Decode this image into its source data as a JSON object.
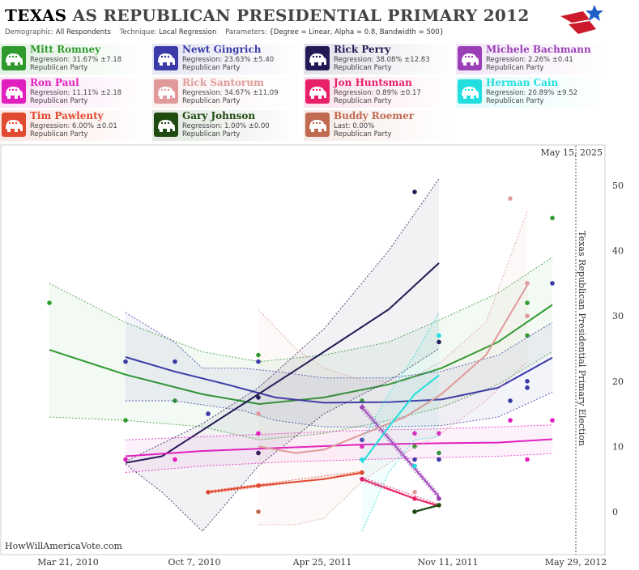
{
  "header": {
    "title_state": "TEXAS",
    "title_rest": "AS REPUBLICAN PRESIDENTIAL PRIMARY 2012",
    "demographic_label": "Demographic:",
    "demographic_value": "All Respondents",
    "technique_label": "Technique:",
    "technique_value": "Local Regression",
    "parameters_label": "Parameters:",
    "parameters_value": "{Degree = Linear, Alpha = 0.8, Bandwidth = 500}"
  },
  "candidates": [
    {
      "name": "Mitt Romney",
      "stat": "Regression: 31.67% ±7.18",
      "party": "Republican Party",
      "color": "#2e9a2e"
    },
    {
      "name": "Newt Gingrich",
      "stat": "Regression: 23.63% ±5.40",
      "party": "Republican Party",
      "color": "#3a3aa8"
    },
    {
      "name": "Rick Perry",
      "stat": "Regression: 38.08% ±12.83",
      "party": "Republican Party",
      "color": "#221a55"
    },
    {
      "name": "Michele Bachmann",
      "stat": "Regression: 2.26% ±0.41",
      "party": "Republican Party",
      "color": "#9b3fb8"
    },
    {
      "name": "Ron Paul",
      "stat": "Regression: 11.11% ±2.18",
      "party": "Republican Party",
      "color": "#e11fbf"
    },
    {
      "name": "Rick Santorum",
      "stat": "Regression: 34.67% ±11.09",
      "party": "Republican Party",
      "color": "#e09a9a"
    },
    {
      "name": "Jon Huntsman",
      "stat": "Regression: 0.89% ±0.17",
      "party": "Republican Party",
      "color": "#e8206a"
    },
    {
      "name": "Herman Cain",
      "stat": "Regression: 20.89% ±9.52",
      "party": "Republican Party",
      "color": "#22dede"
    },
    {
      "name": "Tim Pawlenty",
      "stat": "Regression: 6.00% ±0.01",
      "party": "Republican Party",
      "color": "#e04a30"
    },
    {
      "name": "Gary Johnson",
      "stat": "Regression: 1.00% ±0.00",
      "party": "Republican Party",
      "color": "#1f4a10"
    },
    {
      "name": "Buddy Roemer",
      "stat": "Last: 0.00%",
      "party": "Republican Party",
      "color": "#c06a50"
    }
  ],
  "chart_data": {
    "type": "line",
    "x_ticks": [
      "Mar 21, 2010",
      "Oct 7, 2010",
      "Apr 25, 2011",
      "Nov 11, 2011",
      "May 29, 2012"
    ],
    "y_ticks": [
      0,
      10,
      20,
      30,
      40,
      50
    ],
    "ylim": [
      -7,
      55
    ],
    "date_marker": "May 15, 2025",
    "election_label": "Texas Republican Presidential Primary Election",
    "watermark": "HowWillAmericaVote.com",
    "series": [
      {
        "name": "Mitt Romney",
        "color": "#2e9a2e",
        "line": [
          [
            61,
            24.8
          ],
          [
            155,
            21
          ],
          [
            250,
            18
          ],
          [
            320,
            16.5
          ],
          [
            400,
            17.5
          ],
          [
            480,
            19.5
          ],
          [
            545,
            22
          ],
          [
            615,
            26
          ],
          [
            682,
            31.7
          ]
        ],
        "upper": [
          [
            61,
            35
          ],
          [
            155,
            29
          ],
          [
            250,
            24.5
          ],
          [
            320,
            23
          ],
          [
            400,
            24
          ],
          [
            480,
            26
          ],
          [
            545,
            29.5
          ],
          [
            615,
            33.5
          ],
          [
            682,
            39
          ]
        ],
        "lower": [
          [
            61,
            14.5
          ],
          [
            155,
            14
          ],
          [
            250,
            13
          ],
          [
            320,
            11
          ],
          [
            400,
            12
          ],
          [
            480,
            14
          ],
          [
            545,
            16
          ],
          [
            615,
            19.5
          ],
          [
            682,
            24.5
          ]
        ],
        "points": [
          [
            61,
            32
          ],
          [
            155,
            14
          ],
          [
            216,
            17
          ],
          [
            319,
            24
          ],
          [
            447,
            17
          ],
          [
            512,
            10
          ],
          [
            542,
            9
          ],
          [
            651,
            27
          ],
          [
            651,
            32
          ],
          [
            682,
            45
          ]
        ]
      },
      {
        "name": "Newt Gingrich",
        "color": "#3a3aa8",
        "line": [
          [
            155,
            23.7
          ],
          [
            215,
            21.5
          ],
          [
            280,
            19.5
          ],
          [
            340,
            17.5
          ],
          [
            400,
            16.7
          ],
          [
            480,
            16.8
          ],
          [
            545,
            17.2
          ],
          [
            615,
            19
          ],
          [
            682,
            23.6
          ]
        ],
        "upper": [
          [
            155,
            30.5
          ],
          [
            215,
            26
          ],
          [
            250,
            22
          ],
          [
            300,
            22
          ],
          [
            340,
            21.5
          ],
          [
            400,
            20.5
          ],
          [
            480,
            20.5
          ],
          [
            545,
            21.5
          ],
          [
            615,
            24
          ],
          [
            682,
            29
          ]
        ],
        "lower": [
          [
            155,
            17
          ],
          [
            215,
            17
          ],
          [
            300,
            15.5
          ],
          [
            340,
            14
          ],
          [
            400,
            13
          ],
          [
            480,
            13
          ],
          [
            545,
            13.2
          ],
          [
            615,
            14.5
          ],
          [
            682,
            18.3
          ]
        ],
        "points": [
          [
            155,
            23
          ],
          [
            216,
            23
          ],
          [
            257,
            15
          ],
          [
            319,
            23
          ],
          [
            447,
            11
          ],
          [
            512,
            8
          ],
          [
            542,
            8
          ],
          [
            630,
            17
          ],
          [
            651,
            20
          ],
          [
            651,
            19
          ],
          [
            682,
            35
          ]
        ]
      },
      {
        "name": "Rick Perry",
        "color": "#221a55",
        "line": [
          [
            155,
            7.5
          ],
          [
            200,
            8.5
          ],
          [
            250,
            12.5
          ],
          [
            319,
            18
          ],
          [
            400,
            24.5
          ],
          [
            480,
            31
          ],
          [
            542,
            38.1
          ]
        ],
        "upper": [
          [
            155,
            7.7
          ],
          [
            250,
            13.5
          ],
          [
            319,
            19
          ],
          [
            400,
            28
          ],
          [
            480,
            40
          ],
          [
            542,
            51
          ]
        ],
        "lower": [
          [
            155,
            7.3
          ],
          [
            200,
            3
          ],
          [
            250,
            -3
          ],
          [
            319,
            7
          ],
          [
            400,
            15
          ],
          [
            480,
            20
          ],
          [
            542,
            25
          ]
        ],
        "points": [
          [
            319,
            17.5
          ],
          [
            319,
            9
          ],
          [
            512,
            49
          ],
          [
            542,
            26
          ]
        ]
      },
      {
        "name": "Michele Bachmann",
        "color": "#9b3fb8",
        "line": [
          [
            447,
            16
          ],
          [
            542,
            2.3
          ]
        ],
        "upper": [
          [
            447,
            16.5
          ],
          [
            542,
            2.7
          ]
        ],
        "lower": [
          [
            447,
            15.5
          ],
          [
            542,
            1.9
          ]
        ],
        "points": [
          [
            447,
            16
          ],
          [
            512,
            7
          ],
          [
            542,
            2
          ]
        ]
      },
      {
        "name": "Ron Paul",
        "color": "#e11fbf",
        "line": [
          [
            155,
            8.5
          ],
          [
            250,
            9.3
          ],
          [
            350,
            9.8
          ],
          [
            450,
            10.3
          ],
          [
            545,
            10.5
          ],
          [
            615,
            10.6
          ],
          [
            682,
            11.1
          ]
        ],
        "upper": [
          [
            155,
            11
          ],
          [
            250,
            11.5
          ],
          [
            350,
            12
          ],
          [
            450,
            12.5
          ],
          [
            545,
            12.7
          ],
          [
            615,
            13
          ],
          [
            682,
            13.3
          ]
        ],
        "lower": [
          [
            155,
            6
          ],
          [
            250,
            7
          ],
          [
            350,
            7.6
          ],
          [
            450,
            8
          ],
          [
            545,
            8.3
          ],
          [
            615,
            8.5
          ],
          [
            682,
            8.9
          ]
        ],
        "points": [
          [
            155,
            8
          ],
          [
            216,
            8
          ],
          [
            319,
            12
          ],
          [
            447,
            10
          ],
          [
            512,
            12
          ],
          [
            542,
            12
          ],
          [
            630,
            14
          ],
          [
            651,
            8
          ],
          [
            682,
            14
          ]
        ]
      },
      {
        "name": "Rick Santorum",
        "color": "#e09a9a",
        "line": [
          [
            319,
            10
          ],
          [
            365,
            9
          ],
          [
            400,
            9.5
          ],
          [
            450,
            12
          ],
          [
            500,
            14.5
          ],
          [
            545,
            18
          ],
          [
            600,
            24
          ],
          [
            651,
            34.7
          ]
        ],
        "upper": [
          [
            319,
            31
          ],
          [
            365,
            25
          ],
          [
            400,
            22
          ],
          [
            450,
            20
          ],
          [
            500,
            20
          ],
          [
            545,
            23
          ],
          [
            600,
            29
          ],
          [
            651,
            46
          ]
        ],
        "lower": [
          [
            319,
            -2
          ],
          [
            365,
            -2
          ],
          [
            400,
            -1
          ],
          [
            450,
            5
          ],
          [
            500,
            9
          ],
          [
            545,
            12
          ],
          [
            600,
            17
          ],
          [
            651,
            23
          ]
        ],
        "points": [
          [
            319,
            15
          ],
          [
            512,
            3
          ],
          [
            630,
            48
          ],
          [
            651,
            30
          ],
          [
            651,
            35
          ]
        ]
      },
      {
        "name": "Jon Huntsman",
        "color": "#e8206a",
        "line": [
          [
            447,
            5
          ],
          [
            512,
            2
          ],
          [
            542,
            0.9
          ]
        ],
        "upper": [
          [
            447,
            5.3
          ],
          [
            542,
            1.1
          ]
        ],
        "lower": [
          [
            447,
            4.7
          ],
          [
            542,
            0.7
          ]
        ],
        "points": [
          [
            447,
            5
          ],
          [
            512,
            2
          ]
        ]
      },
      {
        "name": "Herman Cain",
        "color": "#22dede",
        "line": [
          [
            447,
            7.5
          ],
          [
            480,
            13
          ],
          [
            512,
            18
          ],
          [
            542,
            20.9
          ]
        ],
        "upper": [
          [
            447,
            11
          ],
          [
            480,
            18
          ],
          [
            512,
            24
          ],
          [
            542,
            30.5
          ]
        ],
        "lower": [
          [
            447,
            -3
          ],
          [
            480,
            6
          ],
          [
            512,
            11
          ],
          [
            542,
            11.5
          ]
        ],
        "points": [
          [
            447,
            8
          ],
          [
            512,
            7
          ],
          [
            542,
            27
          ]
        ]
      },
      {
        "name": "Tim Pawlenty",
        "color": "#e04a30",
        "line": [
          [
            257,
            3
          ],
          [
            319,
            4
          ],
          [
            400,
            5
          ],
          [
            447,
            6
          ]
        ],
        "upper": [
          [
            257,
            3.2
          ],
          [
            447,
            6.2
          ]
        ],
        "lower": [
          [
            257,
            2.8
          ],
          [
            447,
            5.8
          ]
        ],
        "points": [
          [
            257,
            3
          ],
          [
            319,
            4
          ],
          [
            447,
            6
          ]
        ]
      },
      {
        "name": "Gary Johnson",
        "color": "#1f4a10",
        "line": [
          [
            512,
            0
          ],
          [
            542,
            1
          ]
        ],
        "upper": [
          [
            512,
            0.1
          ],
          [
            542,
            1.1
          ]
        ],
        "lower": [
          [
            512,
            -0.1
          ],
          [
            542,
            0.9
          ]
        ],
        "points": [
          [
            512,
            0
          ],
          [
            542,
            1
          ]
        ]
      },
      {
        "name": "Buddy Roemer",
        "color": "#c06a50",
        "line": [],
        "upper": [],
        "lower": [],
        "points": [
          [
            319,
            0
          ]
        ]
      }
    ]
  }
}
